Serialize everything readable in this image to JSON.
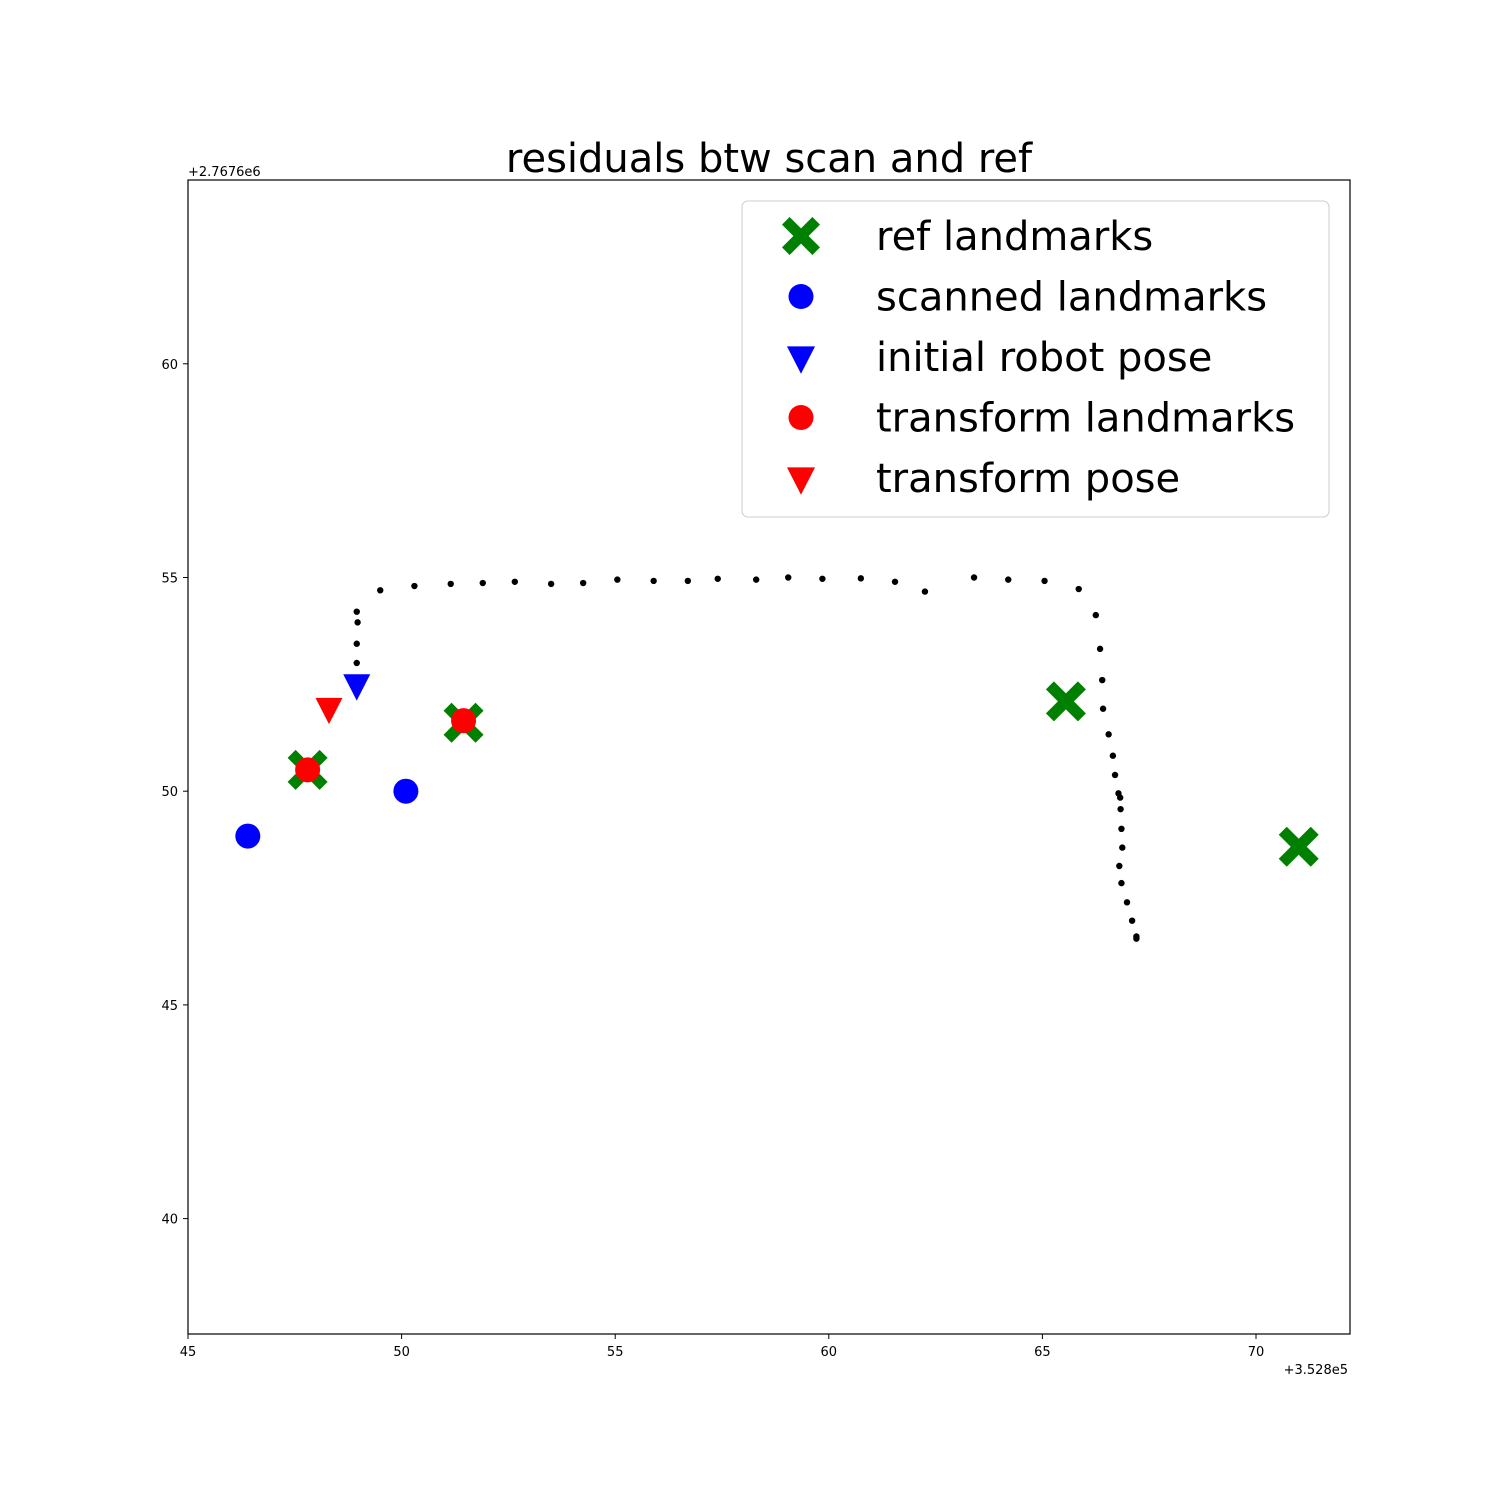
{
  "chart_data": {
    "type": "scatter",
    "title": "residuals btw scan and ref",
    "xlabel": "",
    "ylabel": "",
    "x_offset_label": "+3.528e5",
    "y_offset_label": "+2.7676e6",
    "xlim": [
      45,
      72.2
    ],
    "ylim": [
      37.3,
      64.3
    ],
    "x_ticks": [
      45,
      50,
      55,
      60,
      65,
      70
    ],
    "y_ticks": [
      40,
      45,
      50,
      55,
      60
    ],
    "x_tick_labels": [
      "45",
      "50",
      "55",
      "60",
      "65",
      "70"
    ],
    "y_tick_labels": [
      "40",
      "45",
      "50",
      "55",
      "60"
    ],
    "grid": false,
    "legend_position": "top-right",
    "series": [
      {
        "name": "ref landmarks",
        "marker": "X",
        "color": "#008000",
        "points": [
          [
            47.8,
            50.5
          ],
          [
            51.45,
            51.6
          ],
          [
            65.55,
            52.1
          ],
          [
            71.0,
            48.7
          ]
        ]
      },
      {
        "name": "scanned landmarks",
        "marker": "circle",
        "color": "#0000ff",
        "points": [
          [
            46.4,
            48.95
          ],
          [
            50.1,
            50.0
          ]
        ]
      },
      {
        "name": "initial robot pose",
        "marker": "triangle-down",
        "color": "#0000ff",
        "points": [
          [
            48.95,
            52.45
          ]
        ]
      },
      {
        "name": "transform landmarks",
        "marker": "circle",
        "color": "#ff0000",
        "points": [
          [
            47.8,
            50.5
          ],
          [
            51.45,
            51.65
          ]
        ]
      },
      {
        "name": "transform pose",
        "marker": "triangle-down",
        "color": "#ff0000",
        "points": [
          [
            48.3,
            51.9
          ]
        ]
      }
    ],
    "trajectory": {
      "marker": "dot",
      "color": "#000000",
      "points": [
        [
          48.95,
          54.2
        ],
        [
          48.97,
          53.95
        ],
        [
          48.95,
          53.45
        ],
        [
          48.95,
          53.0
        ],
        [
          49.5,
          54.7
        ],
        [
          50.3,
          54.8
        ],
        [
          51.15,
          54.85
        ],
        [
          51.9,
          54.87
        ],
        [
          52.65,
          54.9
        ],
        [
          53.5,
          54.85
        ],
        [
          54.25,
          54.87
        ],
        [
          55.05,
          54.95
        ],
        [
          55.9,
          54.92
        ],
        [
          56.7,
          54.92
        ],
        [
          57.4,
          54.97
        ],
        [
          58.3,
          54.95
        ],
        [
          59.05,
          55.0
        ],
        [
          59.85,
          54.97
        ],
        [
          60.75,
          54.98
        ],
        [
          61.55,
          54.9
        ],
        [
          62.25,
          54.67
        ],
        [
          63.4,
          55.0
        ],
        [
          64.2,
          54.95
        ],
        [
          65.05,
          54.92
        ],
        [
          65.85,
          54.73
        ],
        [
          66.25,
          54.12
        ],
        [
          66.35,
          53.33
        ],
        [
          66.4,
          52.6
        ],
        [
          66.42,
          51.93
        ],
        [
          66.55,
          51.33
        ],
        [
          66.65,
          50.83
        ],
        [
          66.7,
          50.38
        ],
        [
          66.78,
          49.95
        ],
        [
          66.82,
          49.85
        ],
        [
          66.83,
          49.58
        ],
        [
          66.85,
          49.12
        ],
        [
          66.87,
          48.68
        ],
        [
          66.8,
          48.25
        ],
        [
          66.85,
          47.85
        ],
        [
          66.98,
          47.4
        ],
        [
          67.1,
          46.97
        ],
        [
          67.2,
          46.6
        ],
        [
          67.2,
          46.55
        ]
      ]
    }
  }
}
